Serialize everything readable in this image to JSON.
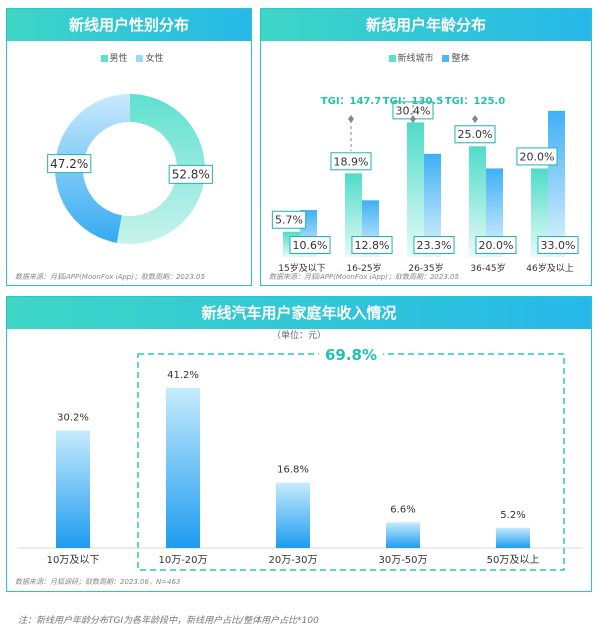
{
  "gender_panel": {
    "title": "新线用户性别分布",
    "source": "数据来源：月狐iAPP(MoonFox iApp)；取数周期：2023.05"
  },
  "age_panel": {
    "title": "新线用户年龄分布",
    "source": "数据来源：月狐iAPP(MoonFox iApp)；取数周期：2023.05"
  },
  "income_panel": {
    "title": "新线汽车用户家庭年收入情况",
    "subtitle": "（单位：元）",
    "highlight_label": "69.8%",
    "source": "数据来源：月狐调研；取数周期：2023.06，N=463"
  },
  "footnote": "注：新线用户年龄分布TGI为各年龄段中，新线用户占比/整体用户占比*100",
  "colors": {
    "male": "#5fe0cf",
    "female": "#4db6f5",
    "accent": "#1fc3ad",
    "header": "#26b8e8"
  },
  "chart_data": [
    {
      "type": "pie",
      "title": "新线用户性别分布",
      "categories": [
        "男性",
        "女性"
      ],
      "values": [
        52.8,
        47.2
      ],
      "value_labels": [
        "52.8%",
        "47.2%"
      ],
      "donut": true,
      "legend_position": "top"
    },
    {
      "type": "bar",
      "title": "新线用户年龄分布",
      "categories": [
        "15岁及以下",
        "16-25岁",
        "26-35岁",
        "36-45岁",
        "46岁及以上"
      ],
      "series": [
        {
          "name": "新线城市",
          "values": [
            5.7,
            18.9,
            30.4,
            25.0,
            20.0
          ],
          "labels": [
            "5.7%",
            "18.9%",
            "30.4%",
            "25.0%",
            "20.0%"
          ]
        },
        {
          "name": "整体",
          "values": [
            10.6,
            12.8,
            23.3,
            20.0,
            33.0
          ],
          "labels": [
            "10.6%",
            "12.8%",
            "23.3%",
            "20.0%",
            "33.0%"
          ]
        }
      ],
      "annotations": [
        {
          "category": "16-25岁",
          "text": "TGI：147.7"
        },
        {
          "category": "26-35岁",
          "text": "TGI：130.5"
        },
        {
          "category": "36-45岁",
          "text": "TGI：125.0"
        }
      ],
      "legend_position": "top"
    },
    {
      "type": "bar",
      "title": "新线汽车用户家庭年收入情况",
      "categories": [
        "10万及以下",
        "10万-20万",
        "20万-30万",
        "30万-50万",
        "50万及以上"
      ],
      "values": [
        30.2,
        41.2,
        16.8,
        6.6,
        5.2
      ],
      "value_labels": [
        "30.2%",
        "41.2%",
        "16.8%",
        "6.6%",
        "5.2%"
      ],
      "annotations": [
        {
          "text": "69.8%",
          "covers": [
            "10万-20万",
            "20万-30万",
            "30万-50万",
            "50万及以上"
          ]
        }
      ]
    }
  ]
}
